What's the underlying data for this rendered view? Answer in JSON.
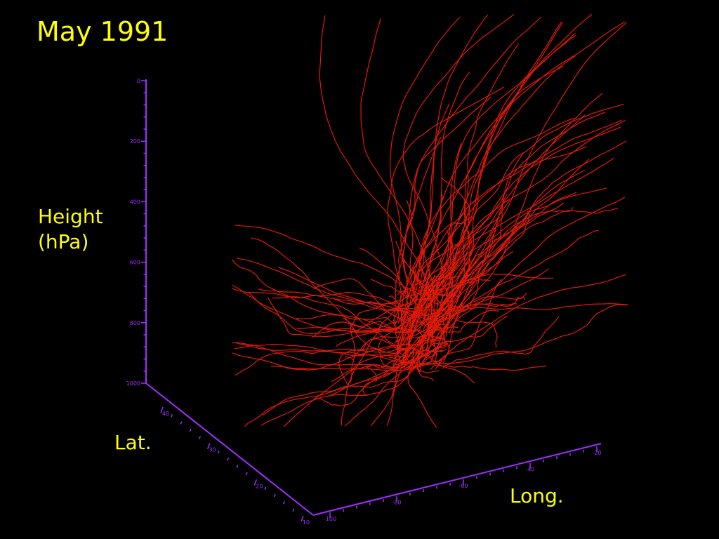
{
  "title": "May 1991",
  "height_axis": {
    "label": "Height (hPa)",
    "ticks": [
      "0",
      "200",
      "400",
      "600",
      "800",
      "1000"
    ]
  },
  "lat_axis": {
    "label": "Lat.",
    "ticks": [
      "40",
      "30",
      "20",
      "10"
    ]
  },
  "long_axis": {
    "label": "Long.",
    "ticks": [
      "-100",
      "-80",
      "-60",
      "-40",
      "-20"
    ]
  }
}
